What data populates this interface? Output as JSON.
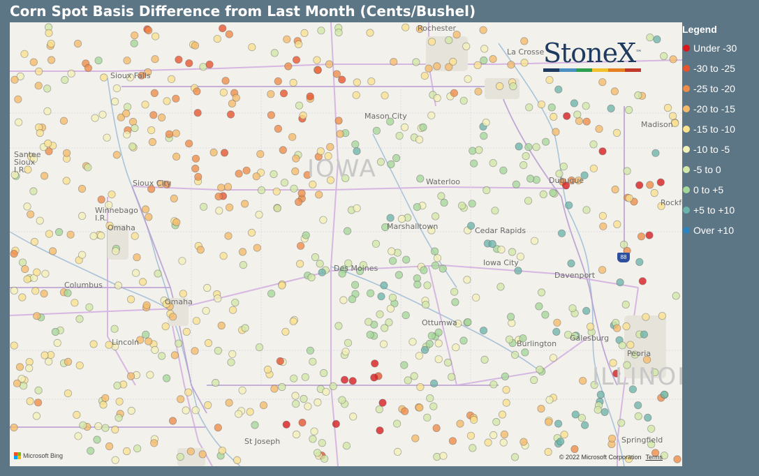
{
  "title": "Corn Spot Basis Difference from Last Month (Cents/Bushel)",
  "legend": {
    "title": "Legend",
    "items": [
      {
        "label": "Under -30",
        "color": "#d7191c"
      },
      {
        "label": "-30 to -25",
        "color": "#e8532e"
      },
      {
        "label": "-25 to -20",
        "color": "#f08c49"
      },
      {
        "label": "-20 to -15",
        "color": "#f6bb6a"
      },
      {
        "label": "-15 to -10",
        "color": "#fbe28e"
      },
      {
        "label": "-10 to -5",
        "color": "#f3f0b7"
      },
      {
        "label": "-5 to 0",
        "color": "#d2e8a6"
      },
      {
        "label": "0 to +5",
        "color": "#a6d79a"
      },
      {
        "label": "+5 to +10",
        "color": "#6db5ab"
      },
      {
        "label": "Over +10",
        "color": "#2b83ba"
      }
    ]
  },
  "map": {
    "state_labels": [
      "IOWA",
      "ILLINOIS"
    ],
    "cities": [
      "Rochester",
      "La Crosse",
      "Sioux Falls",
      "Mason City",
      "Madison",
      "Santee Sioux I.R.",
      "Sioux City",
      "Waterloo",
      "Dubuque",
      "Winnebago I.R.",
      "Omaha",
      "Marshalltown",
      "Cedar Rapids",
      "Rockford",
      "Iowa City",
      "Des Moines",
      "Davenport",
      "Columbus",
      "Omaha",
      "Ottumwa",
      "Lincoln",
      "Burlington",
      "Galesburg",
      "Peoria",
      "St Joseph",
      "Springfield"
    ],
    "interstate_shield": "88"
  },
  "logo": {
    "text": "StoneX",
    "tm": "™",
    "bar_colors": [
      "#1e3a5f",
      "#4a90c2",
      "#2e9e4f",
      "#f2c12e",
      "#e67e22",
      "#c0392b"
    ]
  },
  "attribution": {
    "bing": "Microsoft Bing",
    "copyright": "© 2022 Microsoft Corporation",
    "terms": "Terms"
  }
}
